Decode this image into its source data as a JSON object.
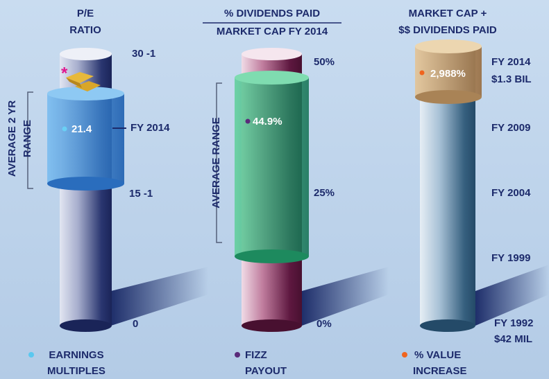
{
  "panels": [
    {
      "title": [
        "P/E",
        "RATIO"
      ],
      "range_label": [
        "AVERAGE 2 YR",
        "RANGE"
      ],
      "scale_labels": [
        "30 -1",
        "15 -1",
        "0"
      ],
      "marker": {
        "value": "21.4",
        "label": "FY 2014"
      },
      "note_mark": "*",
      "legend": [
        "EARNINGS",
        "MULTIPLES"
      ]
    },
    {
      "title": [
        "% DIVIDENDS PAID",
        "MARKET CAP FY 2014"
      ],
      "range_label": [
        "AVERAGE RANGE"
      ],
      "scale_labels": [
        "50%",
        "25%",
        "0%"
      ],
      "marker": {
        "value": "44.9%"
      },
      "legend": [
        "FIZZ",
        "PAYOUT"
      ]
    },
    {
      "title": [
        "MARKET CAP +",
        "$$ DIVIDENDS PAID"
      ],
      "scale_labels": [
        "FY 2014",
        "$1.3 BIL",
        "FY 2009",
        "FY 2004",
        "FY 1999",
        "FY 1992",
        "$42 MIL"
      ],
      "marker": {
        "value": "2,988%"
      },
      "legend": [
        "% VALUE",
        "INCREASE"
      ]
    }
  ]
}
